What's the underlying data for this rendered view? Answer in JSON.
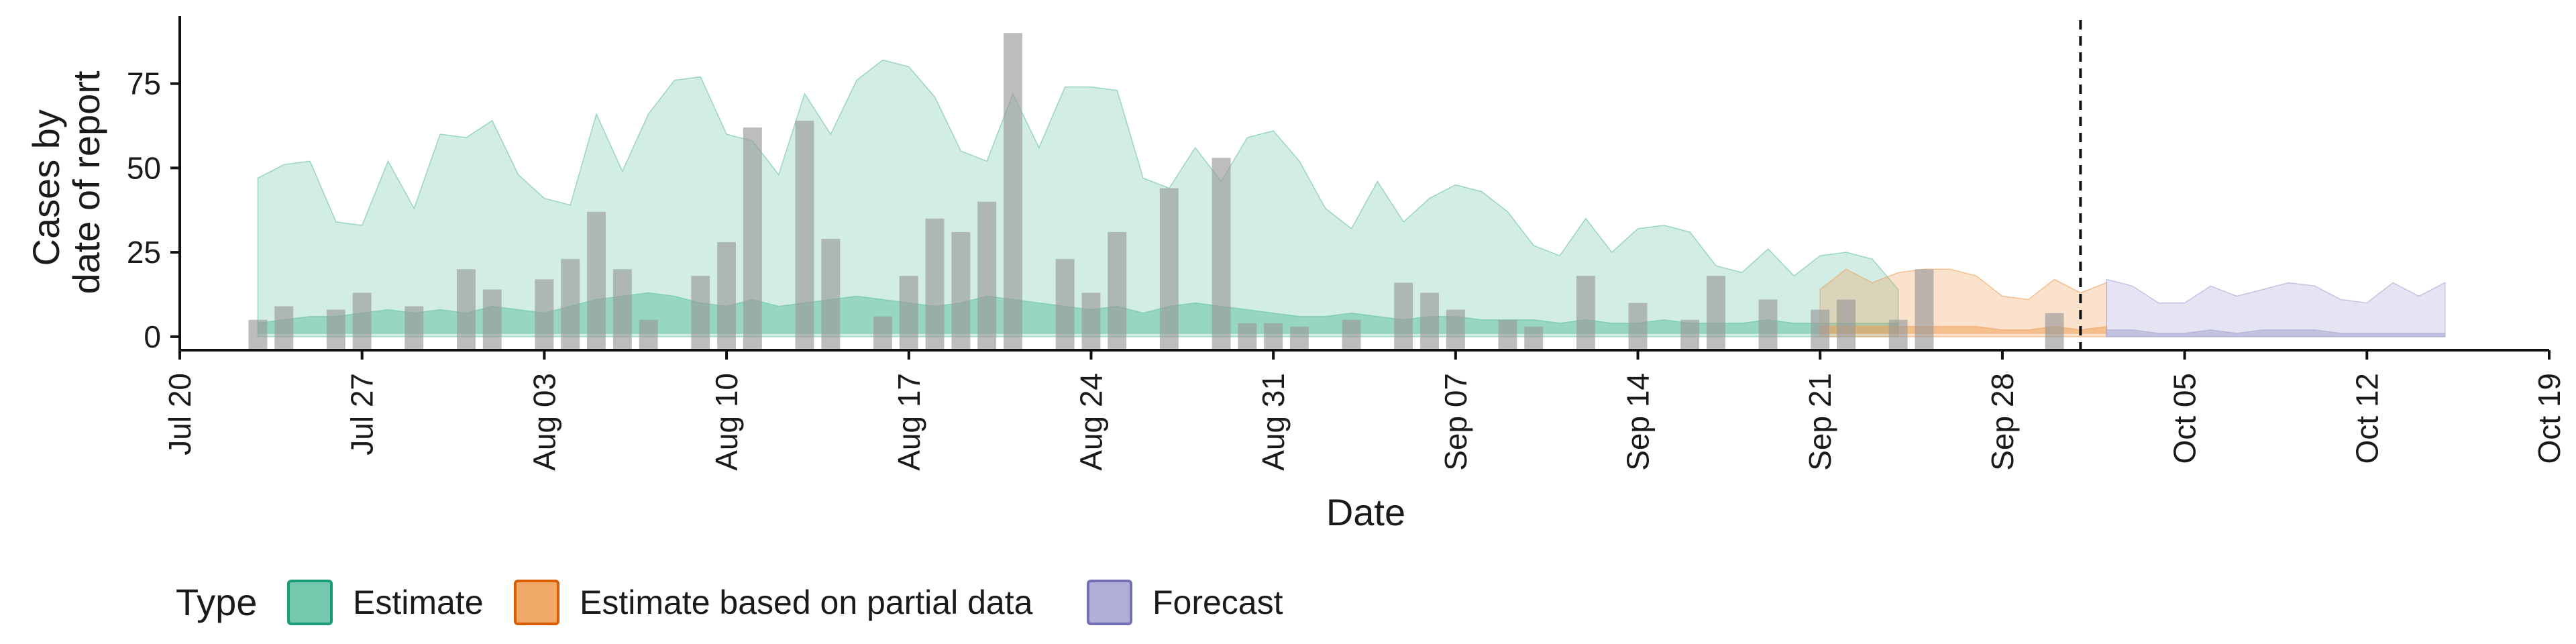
{
  "chart_data": {
    "type": "area",
    "xlabel": "Date",
    "ylabel": [
      "Cases by",
      "date of report"
    ],
    "x_axis": {
      "type": "date",
      "range": [
        "2020-07-20",
        "2020-10-19"
      ],
      "ticks": [
        "2020-07-20",
        "2020-07-27",
        "2020-08-03",
        "2020-08-10",
        "2020-08-17",
        "2020-08-24",
        "2020-08-31",
        "2020-09-07",
        "2020-09-14",
        "2020-09-21",
        "2020-09-28",
        "2020-10-05",
        "2020-10-12",
        "2020-10-19"
      ],
      "tick_labels": [
        "Jul 20",
        "Jul 27",
        "Aug 03",
        "Aug 10",
        "Aug 17",
        "Aug 24",
        "Aug 31",
        "Sep 07",
        "Sep 14",
        "Sep 21",
        "Sep 28",
        "Oct 05",
        "Oct 12",
        "Oct 19"
      ]
    },
    "y_axis": {
      "range": [
        -4,
        95
      ],
      "ticks": [
        0,
        25,
        50,
        75
      ],
      "tick_labels": [
        "0",
        "25",
        "50",
        "75"
      ]
    },
    "grid": false,
    "legend": {
      "position": "bottom",
      "title": "Type",
      "items": [
        {
          "label": "Estimate",
          "fill": "#66c2a5",
          "stroke": "#1b9e77"
        },
        {
          "label": "Estimate based on partial data",
          "fill": "#f0a05a",
          "stroke": "#d95f02"
        },
        {
          "label": "Forecast",
          "fill": "#a9a6d4",
          "stroke": "#7570b3"
        }
      ]
    },
    "reference_line": {
      "date": "2020-10-01",
      "style": "dashed"
    },
    "colors": {
      "estimate": "#66c2a5",
      "partial": "#f0a05a",
      "forecast": "#a9a6d4",
      "bars": "#9a9a9a"
    },
    "observed_cases": {
      "start_date": "2020-07-23",
      "values": [
        5,
        9,
        0,
        8,
        13,
        0,
        9,
        0,
        20,
        14,
        0,
        17,
        23,
        37,
        20,
        5,
        0,
        18,
        28,
        62,
        0,
        64,
        29,
        0,
        6,
        18,
        35,
        31,
        40,
        90,
        0,
        23,
        13,
        31,
        0,
        44,
        0,
        53,
        4,
        4,
        3,
        0,
        5,
        0,
        16,
        13,
        8,
        0,
        5,
        3,
        0,
        18,
        0,
        10,
        0,
        5,
        18,
        0,
        11,
        0,
        8,
        11,
        0,
        5,
        20,
        0,
        0,
        0,
        0,
        7
      ]
    },
    "series": [
      {
        "name": "Estimate",
        "start_date": "2020-07-23",
        "upper_90": [
          47,
          51,
          52,
          34,
          33,
          52,
          38,
          60,
          59,
          64,
          48,
          41,
          39,
          66,
          49,
          66,
          76,
          77,
          60,
          58,
          48,
          72,
          60,
          76,
          82,
          80,
          71,
          55,
          52,
          72,
          56,
          74,
          74,
          73,
          47,
          44,
          56,
          46,
          59,
          61,
          52,
          38,
          32,
          46,
          34,
          41,
          45,
          43,
          37,
          27,
          24,
          35,
          25,
          32,
          33,
          31,
          21,
          19,
          26,
          18,
          24,
          25,
          23,
          14
        ],
        "upper_50": [
          4,
          5,
          6,
          6,
          7,
          8,
          7,
          8,
          7,
          9,
          8,
          7,
          9,
          11,
          12,
          13,
          12,
          10,
          9,
          11,
          9,
          10,
          11,
          12,
          11,
          10,
          9,
          10,
          12,
          11,
          10,
          9,
          8,
          9,
          7,
          9,
          10,
          9,
          8,
          7,
          6,
          6,
          7,
          6,
          5,
          6,
          6,
          5,
          5,
          5,
          4,
          5,
          4,
          4,
          5,
          4,
          4,
          4,
          5,
          4,
          4,
          4,
          4,
          4
        ],
        "lower_50": [
          1,
          1,
          1,
          1,
          1,
          1,
          1,
          1,
          1,
          1,
          1,
          1,
          1,
          1,
          1,
          1,
          1,
          1,
          1,
          1,
          1,
          1,
          1,
          1,
          1,
          1,
          1,
          1,
          1,
          1,
          1,
          1,
          1,
          1,
          1,
          1,
          1,
          1,
          1,
          1,
          1,
          1,
          1,
          1,
          1,
          1,
          1,
          1,
          1,
          1,
          1,
          1,
          1,
          1,
          1,
          1,
          1,
          1,
          1,
          1,
          1,
          1,
          1,
          1
        ],
        "lower_90": [
          0,
          0,
          0,
          0,
          0,
          0,
          0,
          0,
          0,
          0,
          0,
          0,
          0,
          0,
          0,
          0,
          0,
          0,
          0,
          0,
          0,
          0,
          0,
          0,
          0,
          0,
          0,
          0,
          0,
          0,
          0,
          0,
          0,
          0,
          0,
          0,
          0,
          0,
          0,
          0,
          0,
          0,
          0,
          0,
          0,
          0,
          0,
          0,
          0,
          0,
          0,
          0,
          0,
          0,
          0,
          0,
          0,
          0,
          0,
          0,
          0,
          0,
          0,
          0
        ]
      },
      {
        "name": "Estimate based on partial data",
        "start_date": "2020-09-21",
        "upper_90": [
          14,
          20,
          16,
          19,
          20,
          20,
          18,
          12,
          11,
          17,
          13,
          16
        ],
        "upper_50": [
          3,
          3,
          3,
          3,
          3,
          3,
          3,
          2,
          2,
          3,
          2,
          3
        ],
        "lower_50": [
          1,
          1,
          1,
          1,
          1,
          1,
          1,
          1,
          1,
          1,
          1,
          1
        ],
        "lower_90": [
          0,
          0,
          0,
          0,
          0,
          0,
          0,
          0,
          0,
          0,
          0,
          0
        ]
      },
      {
        "name": "Forecast",
        "start_date": "2020-10-02",
        "upper_90": [
          17,
          15,
          10,
          10,
          15,
          12,
          14,
          16,
          15,
          11,
          10,
          16,
          12,
          16
        ],
        "upper_50": [
          2,
          2,
          1,
          1,
          2,
          1,
          2,
          2,
          2,
          1,
          1,
          1,
          1,
          1
        ],
        "lower_50": [
          0,
          0,
          0,
          0,
          0,
          0,
          0,
          0,
          0,
          0,
          0,
          0,
          0,
          0
        ],
        "lower_90": [
          0,
          0,
          0,
          0,
          0,
          0,
          0,
          0,
          0,
          0,
          0,
          0,
          0,
          0
        ]
      }
    ]
  }
}
